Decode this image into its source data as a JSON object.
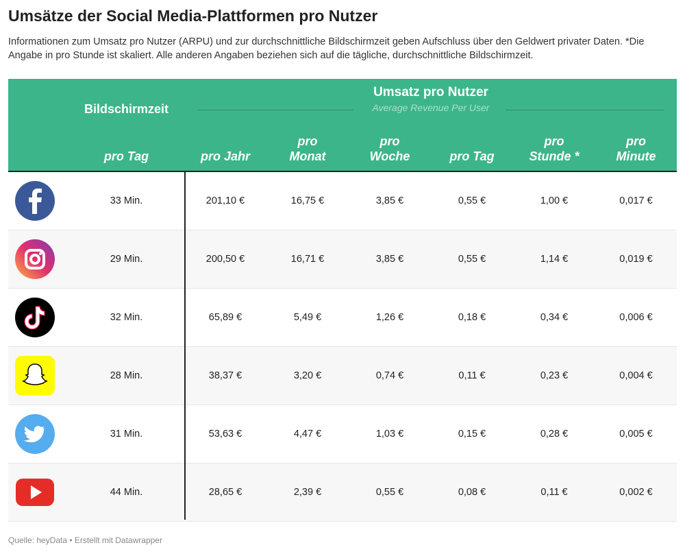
{
  "title": "Umsätze der Social Media-Plattformen pro Nutzer",
  "description": "Informationen zum Umsatz pro Nutzer (ARPU) und zur durchschnittliche Bildschirmzeit geben Aufschluss über den Geldwert privater Daten. *Die Angabe in pro Stunde ist skaliert. Alle anderen Angaben beziehen sich auf die tägliche, durchschnittliche Bildschirmzeit.",
  "header": {
    "screen_time": "Bildschirmzeit",
    "revenue_group": "Umsatz pro Nutzer",
    "revenue_sub": "Average Revenue Per User",
    "columns": [
      "pro Tag",
      "pro Jahr",
      "pro\nMonat",
      "pro\nWoche",
      "pro Tag",
      "pro\nStunde *",
      "pro\nMinute"
    ]
  },
  "chart_data": {
    "type": "table",
    "title": "Umsätze der Social Media-Plattformen pro Nutzer",
    "rows": [
      {
        "icon": "facebook-icon",
        "cells": [
          "33 Min.",
          "201,10 €",
          "16,75 €",
          "3,85 €",
          "0,55 €",
          "1,00 €",
          "0,017 €"
        ]
      },
      {
        "icon": "instagram-icon",
        "cells": [
          "29 Min.",
          "200,50 €",
          "16,71 €",
          "3,85 €",
          "0,55 €",
          "1,14 €",
          "0,019 €"
        ]
      },
      {
        "icon": "tiktok-icon",
        "cells": [
          "32 Min.",
          "65,89 €",
          "5,49 €",
          "1,26 €",
          "0,18 €",
          "0,34 €",
          "0,006 €"
        ]
      },
      {
        "icon": "snapchat-icon",
        "cells": [
          "28 Min.",
          "38,37 €",
          "3,20 €",
          "0,74 €",
          "0,11 €",
          "0,23 €",
          "0,004 €"
        ]
      },
      {
        "icon": "twitter-icon",
        "cells": [
          "31 Min.",
          "53,63 €",
          "4,47 €",
          "1,03 €",
          "0,15 €",
          "0,28 €",
          "0,005 €"
        ]
      },
      {
        "icon": "youtube-icon",
        "cells": [
          "44 Min.",
          "28,65 €",
          "2,39 €",
          "0,55 €",
          "0,08 €",
          "0,11 €",
          "0,002 €"
        ]
      }
    ]
  },
  "source": "Quelle: heyData • Erstellt mit Datawrapper",
  "colors": {
    "header": "#3db58b",
    "alt_row": "#f7f7f7"
  }
}
